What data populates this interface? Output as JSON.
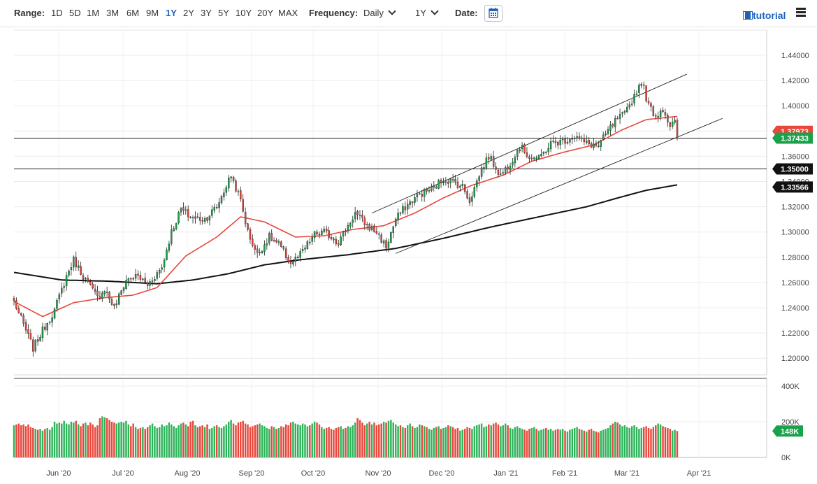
{
  "toolbar": {
    "range_label": "Range:",
    "ranges": [
      "1D",
      "5D",
      "1M",
      "3M",
      "6M",
      "9M",
      "1Y",
      "2Y",
      "3Y",
      "5Y",
      "10Y",
      "20Y",
      "MAX"
    ],
    "active_range": "1Y",
    "frequency_label": "Frequency:",
    "frequency_value": "Daily",
    "period_value": "1Y",
    "date_label": "Date:",
    "tutorial_label": "tutorial"
  },
  "chart_data": {
    "type": "candlestick",
    "title": "",
    "x_labels": [
      "Jun '20",
      "Jul '20",
      "Aug '20",
      "Sep '20",
      "Oct '20",
      "Nov '20",
      "Dec '20",
      "Jan '21",
      "Feb '21",
      "Mar '21",
      "Apr '21"
    ],
    "y_ticks": [
      "1.44000",
      "1.42000",
      "1.40000",
      "1.38000",
      "1.36000",
      "1.34000",
      "1.32000",
      "1.30000",
      "1.28000",
      "1.26000",
      "1.24000",
      "1.22000",
      "1.20000"
    ],
    "ylim": [
      1.19,
      1.45
    ],
    "price_labels": [
      {
        "value": "1.37973",
        "price": 1.37973,
        "color": "#e8473c"
      },
      {
        "value": "1.37433",
        "price": 1.37433,
        "color": "#1aa24a"
      },
      {
        "value": "1.35000",
        "price": 1.35,
        "color": "#111111"
      },
      {
        "value": "1.33566",
        "price": 1.33566,
        "color": "#111111"
      }
    ],
    "horizontal_lines": [
      1.37433,
      1.35
    ],
    "close_anchors": [
      [
        0,
        1.245
      ],
      [
        5,
        1.222
      ],
      [
        8,
        1.208
      ],
      [
        12,
        1.222
      ],
      [
        17,
        1.238
      ],
      [
        22,
        1.265
      ],
      [
        25,
        1.278
      ],
      [
        30,
        1.262
      ],
      [
        35,
        1.248
      ],
      [
        38,
        1.255
      ],
      [
        42,
        1.24
      ],
      [
        47,
        1.262
      ],
      [
        52,
        1.265
      ],
      [
        56,
        1.258
      ],
      [
        62,
        1.272
      ],
      [
        66,
        1.3
      ],
      [
        70,
        1.318
      ],
      [
        74,
        1.312
      ],
      [
        80,
        1.31
      ],
      [
        85,
        1.32
      ],
      [
        91,
        1.345
      ],
      [
        95,
        1.325
      ],
      [
        98,
        1.3
      ],
      [
        102,
        1.282
      ],
      [
        107,
        1.296
      ],
      [
        111,
        1.29
      ],
      [
        116,
        1.275
      ],
      [
        120,
        1.282
      ],
      [
        126,
        1.298
      ],
      [
        130,
        1.3
      ],
      [
        136,
        1.292
      ],
      [
        140,
        1.305
      ],
      [
        143,
        1.315
      ],
      [
        148,
        1.305
      ],
      [
        152,
        1.3
      ],
      [
        156,
        1.288
      ],
      [
        160,
        1.31
      ],
      [
        164,
        1.32
      ],
      [
        170,
        1.33
      ],
      [
        176,
        1.335
      ],
      [
        180,
        1.342
      ],
      [
        184,
        1.34
      ],
      [
        188,
        1.336
      ],
      [
        191,
        1.325
      ],
      [
        196,
        1.35
      ],
      [
        199,
        1.36
      ],
      [
        204,
        1.345
      ],
      [
        208,
        1.355
      ],
      [
        212,
        1.368
      ],
      [
        216,
        1.36
      ],
      [
        220,
        1.358
      ],
      [
        225,
        1.37
      ],
      [
        230,
        1.372
      ],
      [
        235,
        1.376
      ],
      [
        240,
        1.37
      ],
      [
        245,
        1.368
      ],
      [
        249,
        1.38
      ],
      [
        253,
        1.39
      ],
      [
        256,
        1.393
      ],
      [
        260,
        1.408
      ],
      [
        263,
        1.42
      ],
      [
        266,
        1.4
      ],
      [
        269,
        1.392
      ],
      [
        272,
        1.398
      ],
      [
        275,
        1.384
      ],
      [
        279,
        1.39
      ],
      [
        283,
        1.396
      ],
      [
        287,
        1.392
      ],
      [
        291,
        1.385
      ],
      [
        293,
        1.38
      ],
      [
        295,
        1.369
      ],
      [
        297,
        1.374
      ]
    ],
    "ma50_anchors": [
      [
        0,
        1.245
      ],
      [
        12,
        1.233
      ],
      [
        25,
        1.244
      ],
      [
        38,
        1.248
      ],
      [
        50,
        1.25
      ],
      [
        60,
        1.256
      ],
      [
        72,
        1.281
      ],
      [
        85,
        1.296
      ],
      [
        95,
        1.312
      ],
      [
        105,
        1.308
      ],
      [
        118,
        1.296
      ],
      [
        130,
        1.297
      ],
      [
        142,
        1.302
      ],
      [
        155,
        1.305
      ],
      [
        168,
        1.315
      ],
      [
        180,
        1.327
      ],
      [
        192,
        1.337
      ],
      [
        205,
        1.345
      ],
      [
        217,
        1.356
      ],
      [
        230,
        1.363
      ],
      [
        243,
        1.369
      ],
      [
        255,
        1.381
      ],
      [
        265,
        1.389
      ],
      [
        275,
        1.391
      ],
      [
        285,
        1.393
      ],
      [
        297,
        1.388
      ]
    ],
    "ma200_anchors": [
      [
        0,
        1.268
      ],
      [
        20,
        1.262
      ],
      [
        40,
        1.261
      ],
      [
        60,
        1.259
      ],
      [
        75,
        1.262
      ],
      [
        90,
        1.267
      ],
      [
        105,
        1.274
      ],
      [
        120,
        1.278
      ],
      [
        140,
        1.282
      ],
      [
        160,
        1.287
      ],
      [
        180,
        1.295
      ],
      [
        200,
        1.304
      ],
      [
        220,
        1.312
      ],
      [
        240,
        1.32
      ],
      [
        255,
        1.328
      ],
      [
        265,
        1.333
      ],
      [
        280,
        1.338
      ],
      [
        297,
        1.343
      ]
    ],
    "channel_lines": [
      [
        [
          150,
          1.315
        ],
        [
          282,
          1.425
        ]
      ],
      [
        [
          160,
          1.283
        ],
        [
          297,
          1.39
        ]
      ]
    ],
    "volume": {
      "y_ticks": [
        "400K",
        "200K",
        "0K"
      ],
      "ylim": [
        0,
        400000
      ],
      "last_value_label": "148K",
      "values": [
        180000,
        185000,
        190000,
        180000,
        185000,
        175000,
        185000,
        170000,
        165000,
        160000,
        155000,
        160000,
        150000,
        160000,
        165000,
        155000,
        170000,
        200000,
        190000,
        195000,
        190000,
        205000,
        190000,
        185000,
        200000,
        195000,
        205000,
        185000,
        175000,
        190000,
        195000,
        180000,
        195000,
        185000,
        170000,
        180000,
        220000,
        230000,
        225000,
        220000,
        210000,
        200000,
        195000,
        190000,
        195000,
        200000,
        195000,
        205000,
        185000,
        175000,
        190000,
        170000,
        160000,
        165000,
        170000,
        160000,
        170000,
        180000,
        190000,
        175000,
        165000,
        170000,
        185000,
        175000,
        180000,
        195000,
        185000,
        175000,
        165000,
        180000,
        190000,
        195000,
        185000,
        175000,
        200000,
        205000,
        180000,
        170000,
        175000,
        180000,
        170000,
        185000,
        160000,
        165000,
        175000,
        180000,
        170000,
        165000,
        175000,
        185000,
        200000,
        210000,
        190000,
        180000,
        195000,
        200000,
        205000,
        190000,
        185000,
        170000,
        175000,
        180000,
        185000,
        190000,
        180000,
        175000,
        165000,
        160000,
        175000,
        170000,
        160000,
        165000,
        175000,
        170000,
        185000,
        180000,
        195000,
        200000,
        190000,
        185000,
        180000,
        190000,
        185000,
        175000,
        180000,
        190000,
        200000,
        195000,
        185000,
        170000,
        160000,
        165000,
        170000,
        160000,
        155000,
        165000,
        170000,
        175000,
        160000,
        165000,
        175000,
        170000,
        180000,
        195000,
        220000,
        210000,
        195000,
        180000,
        190000,
        200000,
        185000,
        195000,
        180000,
        185000,
        190000,
        200000,
        195000,
        205000,
        210000,
        195000,
        185000,
        175000,
        180000,
        170000,
        165000,
        180000,
        190000,
        175000,
        165000,
        170000,
        185000,
        180000,
        175000,
        170000,
        160000,
        155000,
        165000,
        170000,
        175000,
        160000,
        165000,
        170000,
        180000,
        175000,
        170000,
        160000,
        165000,
        150000,
        155000,
        160000,
        170000,
        165000,
        160000,
        175000,
        180000,
        185000,
        190000,
        170000,
        175000,
        185000,
        180000,
        190000,
        195000,
        185000,
        175000,
        180000,
        190000,
        180000,
        165000,
        160000,
        170000,
        175000,
        165000,
        160000,
        155000,
        150000,
        160000,
        165000,
        170000,
        160000,
        150000,
        155000,
        160000,
        165000,
        155000,
        160000,
        150000,
        155000,
        160000,
        155000,
        160000,
        150000,
        145000,
        155000,
        160000,
        165000,
        170000,
        160000,
        155000,
        150000,
        145000,
        155000,
        160000,
        150000,
        145000,
        140000,
        150000,
        155000,
        160000,
        165000,
        180000,
        190000,
        200000,
        195000,
        185000,
        175000,
        180000,
        170000,
        165000,
        175000,
        180000,
        170000,
        160000,
        165000,
        170000,
        175000,
        165000,
        160000,
        170000,
        180000,
        190000,
        185000,
        175000,
        170000,
        165000,
        160000,
        150000,
        155000,
        148000
      ]
    }
  }
}
